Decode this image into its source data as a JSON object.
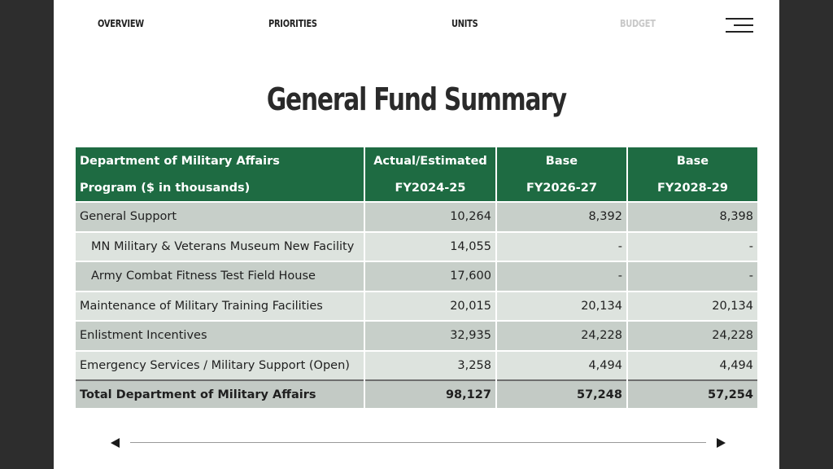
{
  "nav": {
    "items": [
      {
        "label": "OVERVIEW",
        "active": false
      },
      {
        "label": "PRIORITIES",
        "active": false
      },
      {
        "label": "UNITS",
        "active": false
      },
      {
        "label": "BUDGET",
        "active": true
      }
    ]
  },
  "title": "General Fund Summary",
  "table": {
    "headers": [
      {
        "line1": "Department of Military Affairs",
        "line2": "Program ($ in thousands)"
      },
      {
        "line1": "Actual/Estimated",
        "line2": "FY2024-25"
      },
      {
        "line1": "Base",
        "line2": "FY2026-27"
      },
      {
        "line1": "Base",
        "line2": "FY2028-29"
      }
    ],
    "rows": [
      {
        "label": "General Support",
        "v1": "10,264",
        "v2": "8,392",
        "v3": "8,398"
      },
      {
        "label": "MN Military & Veterans Museum New Facility",
        "v1": "14,055",
        "v2": "-",
        "v3": "-"
      },
      {
        "label": "Army Combat Fitness Test Field House",
        "v1": "17,600",
        "v2": "-",
        "v3": "-"
      },
      {
        "label": "Maintenance of Military Training Facilities",
        "v1": "20,015",
        "v2": "20,134",
        "v3": "20,134"
      },
      {
        "label": "Enlistment Incentives",
        "v1": "32,935",
        "v2": "24,228",
        "v3": "24,228"
      },
      {
        "label": "Emergency Services / Military Support (Open)",
        "v1": "3,258",
        "v2": "4,494",
        "v3": "4,494"
      }
    ],
    "total": {
      "label": "Total Department of Military Affairs",
      "v1": "98,127",
      "v2": "57,248",
      "v3": "57,254"
    }
  },
  "colors": {
    "header_bg": "#1e6b42",
    "row_dark": "#c7cfc9",
    "row_light": "#dde3de"
  },
  "icons": {
    "menu": "hamburger-menu-icon",
    "prev": "triangle-left-icon",
    "next": "triangle-right-icon"
  }
}
